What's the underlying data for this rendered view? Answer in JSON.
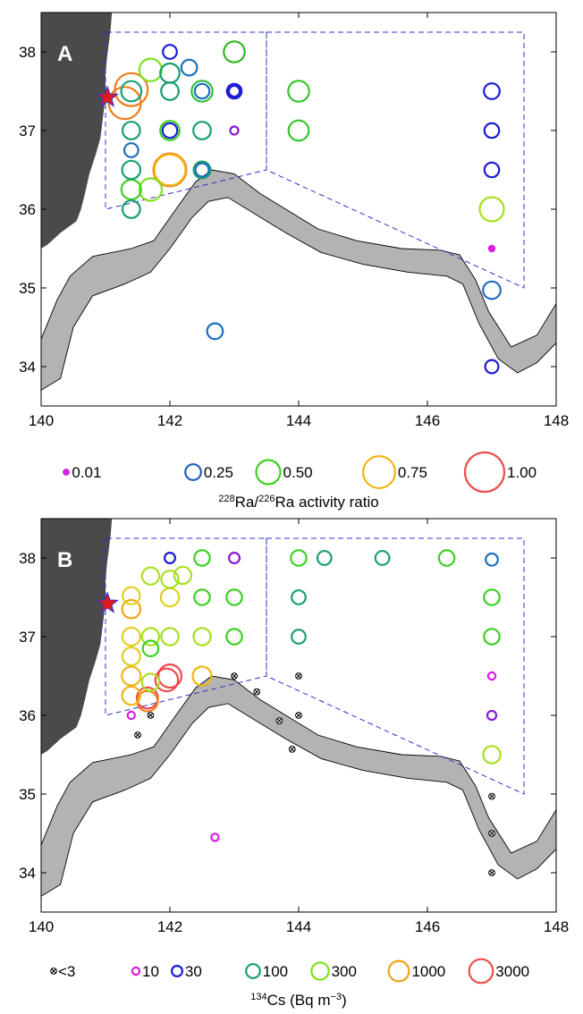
{
  "chart_data": [
    {
      "type": "scatter",
      "panel_label": "A",
      "xlim": [
        140,
        148
      ],
      "ylim": [
        33.5,
        38.5
      ],
      "x_ticks": [
        140,
        142,
        144,
        146,
        148
      ],
      "y_ticks": [
        34,
        35,
        36,
        37,
        38
      ],
      "colorbar_title_parts": [
        "228",
        "Ra/",
        "226",
        "Ra activity ratio"
      ],
      "legend": [
        {
          "label": "0.01",
          "value": 0.01,
          "color": "#d81ee0"
        },
        {
          "label": "0.25",
          "value": 0.25,
          "color": "#1f5fbf"
        },
        {
          "label": "0.50",
          "value": 0.5,
          "color": "#39d11f"
        },
        {
          "label": "0.75",
          "value": 0.75,
          "color": "#f4b414"
        },
        {
          "label": "1.00",
          "value": 1.0,
          "color": "#ee4b4b"
        }
      ],
      "points": [
        {
          "lon": 142.0,
          "lat": 38.0,
          "value": 0.2,
          "color": "#1b1bd6"
        },
        {
          "lon": 143.0,
          "lat": 38.0,
          "value": 0.4,
          "color": "#33b522"
        },
        {
          "lon": 141.7,
          "lat": 37.77,
          "value": 0.45,
          "color": "#80e020"
        },
        {
          "lon": 142.0,
          "lat": 37.73,
          "value": 0.35,
          "color": "#17a070"
        },
        {
          "lon": 142.3,
          "lat": 37.8,
          "value": 0.25,
          "color": "#1d6fbb"
        },
        {
          "lon": 141.4,
          "lat": 37.5,
          "value": 0.38,
          "color": "#17a070"
        },
        {
          "lon": 141.4,
          "lat": 37.52,
          "value": 0.78,
          "color": "#f07d1a"
        },
        {
          "lon": 141.3,
          "lat": 37.35,
          "value": 0.75,
          "color": "#f07d1a"
        },
        {
          "lon": 142.0,
          "lat": 37.5,
          "value": 0.3,
          "color": "#17a070"
        },
        {
          "lon": 142.5,
          "lat": 37.5,
          "value": 0.4,
          "color": "#2fbf3a"
        },
        {
          "lon": 142.5,
          "lat": 37.5,
          "value": 0.22,
          "color": "#1d6fbb"
        },
        {
          "lon": 143.0,
          "lat": 37.5,
          "value": 0.22,
          "color": "#1b1bd6"
        },
        {
          "lon": 143.0,
          "lat": 37.5,
          "value": 0.12,
          "color": "#1b1bd6"
        },
        {
          "lon": 144.0,
          "lat": 37.5,
          "value": 0.4,
          "color": "#33c52a"
        },
        {
          "lon": 147.0,
          "lat": 37.5,
          "value": 0.25,
          "color": "#1b1bd6"
        },
        {
          "lon": 141.4,
          "lat": 37.0,
          "value": 0.3,
          "color": "#17a070"
        },
        {
          "lon": 142.0,
          "lat": 37.0,
          "value": 0.35,
          "color": "#39d11f"
        },
        {
          "lon": 142.0,
          "lat": 37.0,
          "value": 0.22,
          "color": "#1b1bd6"
        },
        {
          "lon": 142.5,
          "lat": 37.0,
          "value": 0.3,
          "color": "#17a070"
        },
        {
          "lon": 143.0,
          "lat": 37.0,
          "value": 0.05,
          "color": "#8a1ad6"
        },
        {
          "lon": 144.0,
          "lat": 37.0,
          "value": 0.38,
          "color": "#33c52a"
        },
        {
          "lon": 147.0,
          "lat": 37.0,
          "value": 0.22,
          "color": "#1b1bd6"
        },
        {
          "lon": 141.4,
          "lat": 36.75,
          "value": 0.2,
          "color": "#1d6fbb"
        },
        {
          "lon": 141.4,
          "lat": 36.5,
          "value": 0.32,
          "color": "#17a070"
        },
        {
          "lon": 142.0,
          "lat": 36.5,
          "value": 0.78,
          "color": "#f07d1a"
        },
        {
          "lon": 142.0,
          "lat": 36.5,
          "value": 0.72,
          "color": "#f4b414"
        },
        {
          "lon": 142.5,
          "lat": 36.5,
          "value": 0.28,
          "color": "#17a070"
        },
        {
          "lon": 142.5,
          "lat": 36.5,
          "value": 0.18,
          "color": "#1d6fbb"
        },
        {
          "lon": 147.0,
          "lat": 36.5,
          "value": 0.22,
          "color": "#1b1bd6"
        },
        {
          "lon": 141.4,
          "lat": 36.25,
          "value": 0.36,
          "color": "#39d11f"
        },
        {
          "lon": 141.7,
          "lat": 36.25,
          "value": 0.45,
          "color": "#80e020"
        },
        {
          "lon": 141.4,
          "lat": 36.0,
          "value": 0.3,
          "color": "#17a070"
        },
        {
          "lon": 147.0,
          "lat": 36.0,
          "value": 0.5,
          "color": "#a8e020"
        },
        {
          "lon": 147.0,
          "lat": 35.5,
          "value": 0.02,
          "color": "#d81ee0"
        },
        {
          "lon": 147.0,
          "lat": 34.97,
          "value": 0.3,
          "color": "#1d6fbb"
        },
        {
          "lon": 142.7,
          "lat": 34.45,
          "value": 0.25,
          "color": "#1d6fbb"
        },
        {
          "lon": 147.0,
          "lat": 34.0,
          "value": 0.18,
          "color": "#1b1bd6"
        }
      ]
    },
    {
      "type": "scatter",
      "panel_label": "B",
      "xlim": [
        140,
        148
      ],
      "ylim": [
        33.5,
        38.5
      ],
      "x_ticks": [
        140,
        142,
        144,
        146,
        148
      ],
      "y_ticks": [
        34,
        35,
        36,
        37,
        38
      ],
      "colorbar_title_parts": [
        "134",
        "Cs (Bq m",
        "−3",
        ")"
      ],
      "legend": [
        {
          "label": "<3",
          "level": 0,
          "color": "#000000",
          "marker": "cross"
        },
        {
          "label": "10",
          "level": 1,
          "color": "#d81ee0"
        },
        {
          "label": "30",
          "level": 2,
          "color": "#1b1bd6"
        },
        {
          "label": "100",
          "level": 3,
          "color": "#17a070"
        },
        {
          "label": "300",
          "level": 4,
          "color": "#80e020"
        },
        {
          "label": "1000",
          "level": 5,
          "color": "#f4a414"
        },
        {
          "label": "3000",
          "level": 6,
          "color": "#ee4b4b"
        }
      ],
      "points": [
        {
          "lon": 142.0,
          "lat": 38.0,
          "level": 2,
          "color": "#1b1bd6"
        },
        {
          "lon": 142.5,
          "lat": 38.0,
          "level": 3.5,
          "color": "#39d11f"
        },
        {
          "lon": 143.0,
          "lat": 38.0,
          "level": 2,
          "color": "#8a1ad6"
        },
        {
          "lon": 144.0,
          "lat": 38.0,
          "level": 3.5,
          "color": "#39d11f"
        },
        {
          "lon": 144.4,
          "lat": 38.0,
          "level": 3,
          "color": "#17a070"
        },
        {
          "lon": 145.3,
          "lat": 38.0,
          "level": 3,
          "color": "#17a070"
        },
        {
          "lon": 146.3,
          "lat": 38.0,
          "level": 3.5,
          "color": "#39d11f"
        },
        {
          "lon": 147.0,
          "lat": 37.98,
          "level": 2.5,
          "color": "#1d6fbb"
        },
        {
          "lon": 141.7,
          "lat": 37.77,
          "level": 4,
          "color": "#a8e020"
        },
        {
          "lon": 142.0,
          "lat": 37.73,
          "level": 4,
          "color": "#a8e020"
        },
        {
          "lon": 142.2,
          "lat": 37.78,
          "level": 4,
          "color": "#a8e020"
        },
        {
          "lon": 141.4,
          "lat": 37.52,
          "level": 4,
          "color": "#e0d020"
        },
        {
          "lon": 141.4,
          "lat": 37.35,
          "level": 4.3,
          "color": "#f4a414"
        },
        {
          "lon": 142.0,
          "lat": 37.5,
          "level": 4.3,
          "color": "#e0d020"
        },
        {
          "lon": 142.5,
          "lat": 37.5,
          "level": 3.5,
          "color": "#39d11f"
        },
        {
          "lon": 143.0,
          "lat": 37.5,
          "level": 3.5,
          "color": "#39d11f"
        },
        {
          "lon": 144.0,
          "lat": 37.5,
          "level": 3,
          "color": "#17a070"
        },
        {
          "lon": 147.0,
          "lat": 37.5,
          "level": 3.5,
          "color": "#39d11f"
        },
        {
          "lon": 141.4,
          "lat": 37.0,
          "level": 4.2,
          "color": "#e0d020"
        },
        {
          "lon": 141.7,
          "lat": 37.0,
          "level": 4,
          "color": "#a8e020"
        },
        {
          "lon": 142.0,
          "lat": 37.0,
          "level": 4,
          "color": "#a8e020"
        },
        {
          "lon": 142.5,
          "lat": 37.0,
          "level": 4,
          "color": "#a8e020"
        },
        {
          "lon": 143.0,
          "lat": 37.0,
          "level": 3.5,
          "color": "#39d11f"
        },
        {
          "lon": 144.0,
          "lat": 37.0,
          "level": 3,
          "color": "#17a070"
        },
        {
          "lon": 147.0,
          "lat": 37.0,
          "level": 3.5,
          "color": "#39d11f"
        },
        {
          "lon": 141.7,
          "lat": 36.85,
          "level": 3.5,
          "color": "#39d11f"
        },
        {
          "lon": 141.4,
          "lat": 36.75,
          "level": 4.2,
          "color": "#e0d020"
        },
        {
          "lon": 141.4,
          "lat": 36.5,
          "level": 4.5,
          "color": "#f4b414"
        },
        {
          "lon": 141.7,
          "lat": 36.42,
          "level": 4,
          "color": "#a8e020"
        },
        {
          "lon": 142.0,
          "lat": 36.5,
          "level": 5.8,
          "color": "#ee4b4b"
        },
        {
          "lon": 141.95,
          "lat": 36.45,
          "level": 5.7,
          "color": "#ee4b4b"
        },
        {
          "lon": 142.5,
          "lat": 36.5,
          "level": 4.5,
          "color": "#f4b414"
        },
        {
          "lon": 141.4,
          "lat": 36.25,
          "level": 4.3,
          "color": "#f4b414"
        },
        {
          "lon": 141.65,
          "lat": 36.22,
          "level": 5.2,
          "color": "#ee4b4b"
        },
        {
          "lon": 141.65,
          "lat": 36.18,
          "level": 5.0,
          "color": "#f07d1a"
        },
        {
          "lon": 141.4,
          "lat": 36.0,
          "level": 1,
          "color": "#d81ee0"
        },
        {
          "lon": 147.0,
          "lat": 36.5,
          "level": 1,
          "color": "#d81ee0"
        },
        {
          "lon": 147.0,
          "lat": 36.0,
          "level": 1.5,
          "color": "#8a1ad6"
        },
        {
          "lon": 147.0,
          "lat": 35.5,
          "level": 4,
          "color": "#a8e020"
        },
        {
          "lon": 142.7,
          "lat": 34.45,
          "level": 1,
          "color": "#d81ee0"
        },
        {
          "lon": 143.0,
          "lat": 36.5,
          "level": 0,
          "color": "#000000"
        },
        {
          "lon": 143.35,
          "lat": 36.3,
          "level": 0,
          "color": "#000000"
        },
        {
          "lon": 144.0,
          "lat": 36.5,
          "level": 0,
          "color": "#000000"
        },
        {
          "lon": 143.7,
          "lat": 35.93,
          "level": 0,
          "color": "#000000"
        },
        {
          "lon": 144.0,
          "lat": 36.0,
          "level": 0,
          "color": "#000000"
        },
        {
          "lon": 143.9,
          "lat": 35.57,
          "level": 0,
          "color": "#000000"
        },
        {
          "lon": 141.7,
          "lat": 36.0,
          "level": 0,
          "color": "#000000"
        },
        {
          "lon": 141.5,
          "lat": 35.75,
          "level": 0,
          "color": "#000000"
        },
        {
          "lon": 147.0,
          "lat": 34.97,
          "level": 0,
          "color": "#000000"
        },
        {
          "lon": 147.0,
          "lat": 34.5,
          "level": 0,
          "color": "#000000"
        },
        {
          "lon": 147.0,
          "lat": 34.0,
          "level": 0,
          "color": "#000000"
        }
      ]
    }
  ],
  "map_style": {
    "land_color": "#4a4a4a",
    "trench_color": "#b3b3b3",
    "box_color": "#3333cc",
    "star_color": "#e31a1c",
    "star_outline": "#3333cc"
  },
  "map_features": {
    "star": {
      "lon": 141.03,
      "lat": 37.42
    },
    "coast": [
      [
        141.1,
        38.5
      ],
      [
        141.08,
        38.3
      ],
      [
        141.05,
        38.1
      ],
      [
        141.02,
        37.9
      ],
      [
        141.0,
        37.7
      ],
      [
        141.0,
        37.5
      ],
      [
        140.98,
        37.3
      ],
      [
        140.95,
        37.1
      ],
      [
        140.92,
        36.9
      ],
      [
        140.85,
        36.7
      ],
      [
        140.75,
        36.45
      ],
      [
        140.68,
        36.2
      ],
      [
        140.62,
        36.0
      ],
      [
        140.55,
        35.85
      ],
      [
        140.3,
        35.7
      ],
      [
        140.1,
        35.55
      ],
      [
        140.0,
        35.5
      ]
    ],
    "trench_upper": [
      [
        140.0,
        34.35
      ],
      [
        140.25,
        34.85
      ],
      [
        140.45,
        35.15
      ],
      [
        140.8,
        35.4
      ],
      [
        141.4,
        35.5
      ],
      [
        141.75,
        35.6
      ],
      [
        142.05,
        35.95
      ],
      [
        142.4,
        36.35
      ],
      [
        142.65,
        36.5
      ],
      [
        143.0,
        36.45
      ],
      [
        143.4,
        36.2
      ],
      [
        143.8,
        36.0
      ],
      [
        144.3,
        35.75
      ],
      [
        144.9,
        35.6
      ],
      [
        145.6,
        35.5
      ],
      [
        146.2,
        35.48
      ],
      [
        146.5,
        35.42
      ],
      [
        146.75,
        35.1
      ],
      [
        146.95,
        34.7
      ],
      [
        147.3,
        34.25
      ],
      [
        147.7,
        34.4
      ],
      [
        148.0,
        34.8
      ]
    ],
    "trench_lower": [
      [
        148.0,
        34.3
      ],
      [
        147.7,
        34.05
      ],
      [
        147.4,
        33.92
      ],
      [
        147.1,
        34.1
      ],
      [
        146.8,
        34.55
      ],
      [
        146.55,
        35.05
      ],
      [
        146.3,
        35.15
      ],
      [
        145.7,
        35.2
      ],
      [
        145.0,
        35.3
      ],
      [
        144.35,
        35.45
      ],
      [
        143.8,
        35.7
      ],
      [
        143.3,
        35.95
      ],
      [
        142.9,
        36.15
      ],
      [
        142.6,
        36.1
      ],
      [
        142.35,
        35.9
      ],
      [
        142.0,
        35.5
      ],
      [
        141.7,
        35.2
      ],
      [
        141.3,
        35.05
      ],
      [
        140.8,
        34.9
      ],
      [
        140.5,
        34.5
      ],
      [
        140.3,
        33.85
      ],
      [
        140.0,
        33.7
      ]
    ],
    "boxes": [
      [
        [
          141.0,
          38.25
        ],
        [
          141.0,
          36.0
        ],
        [
          143.5,
          36.5
        ],
        [
          143.5,
          38.25
        ]
      ],
      [
        [
          143.5,
          38.25
        ],
        [
          147.5,
          38.25
        ],
        [
          147.5,
          35.0
        ],
        [
          143.5,
          36.5
        ]
      ]
    ]
  }
}
